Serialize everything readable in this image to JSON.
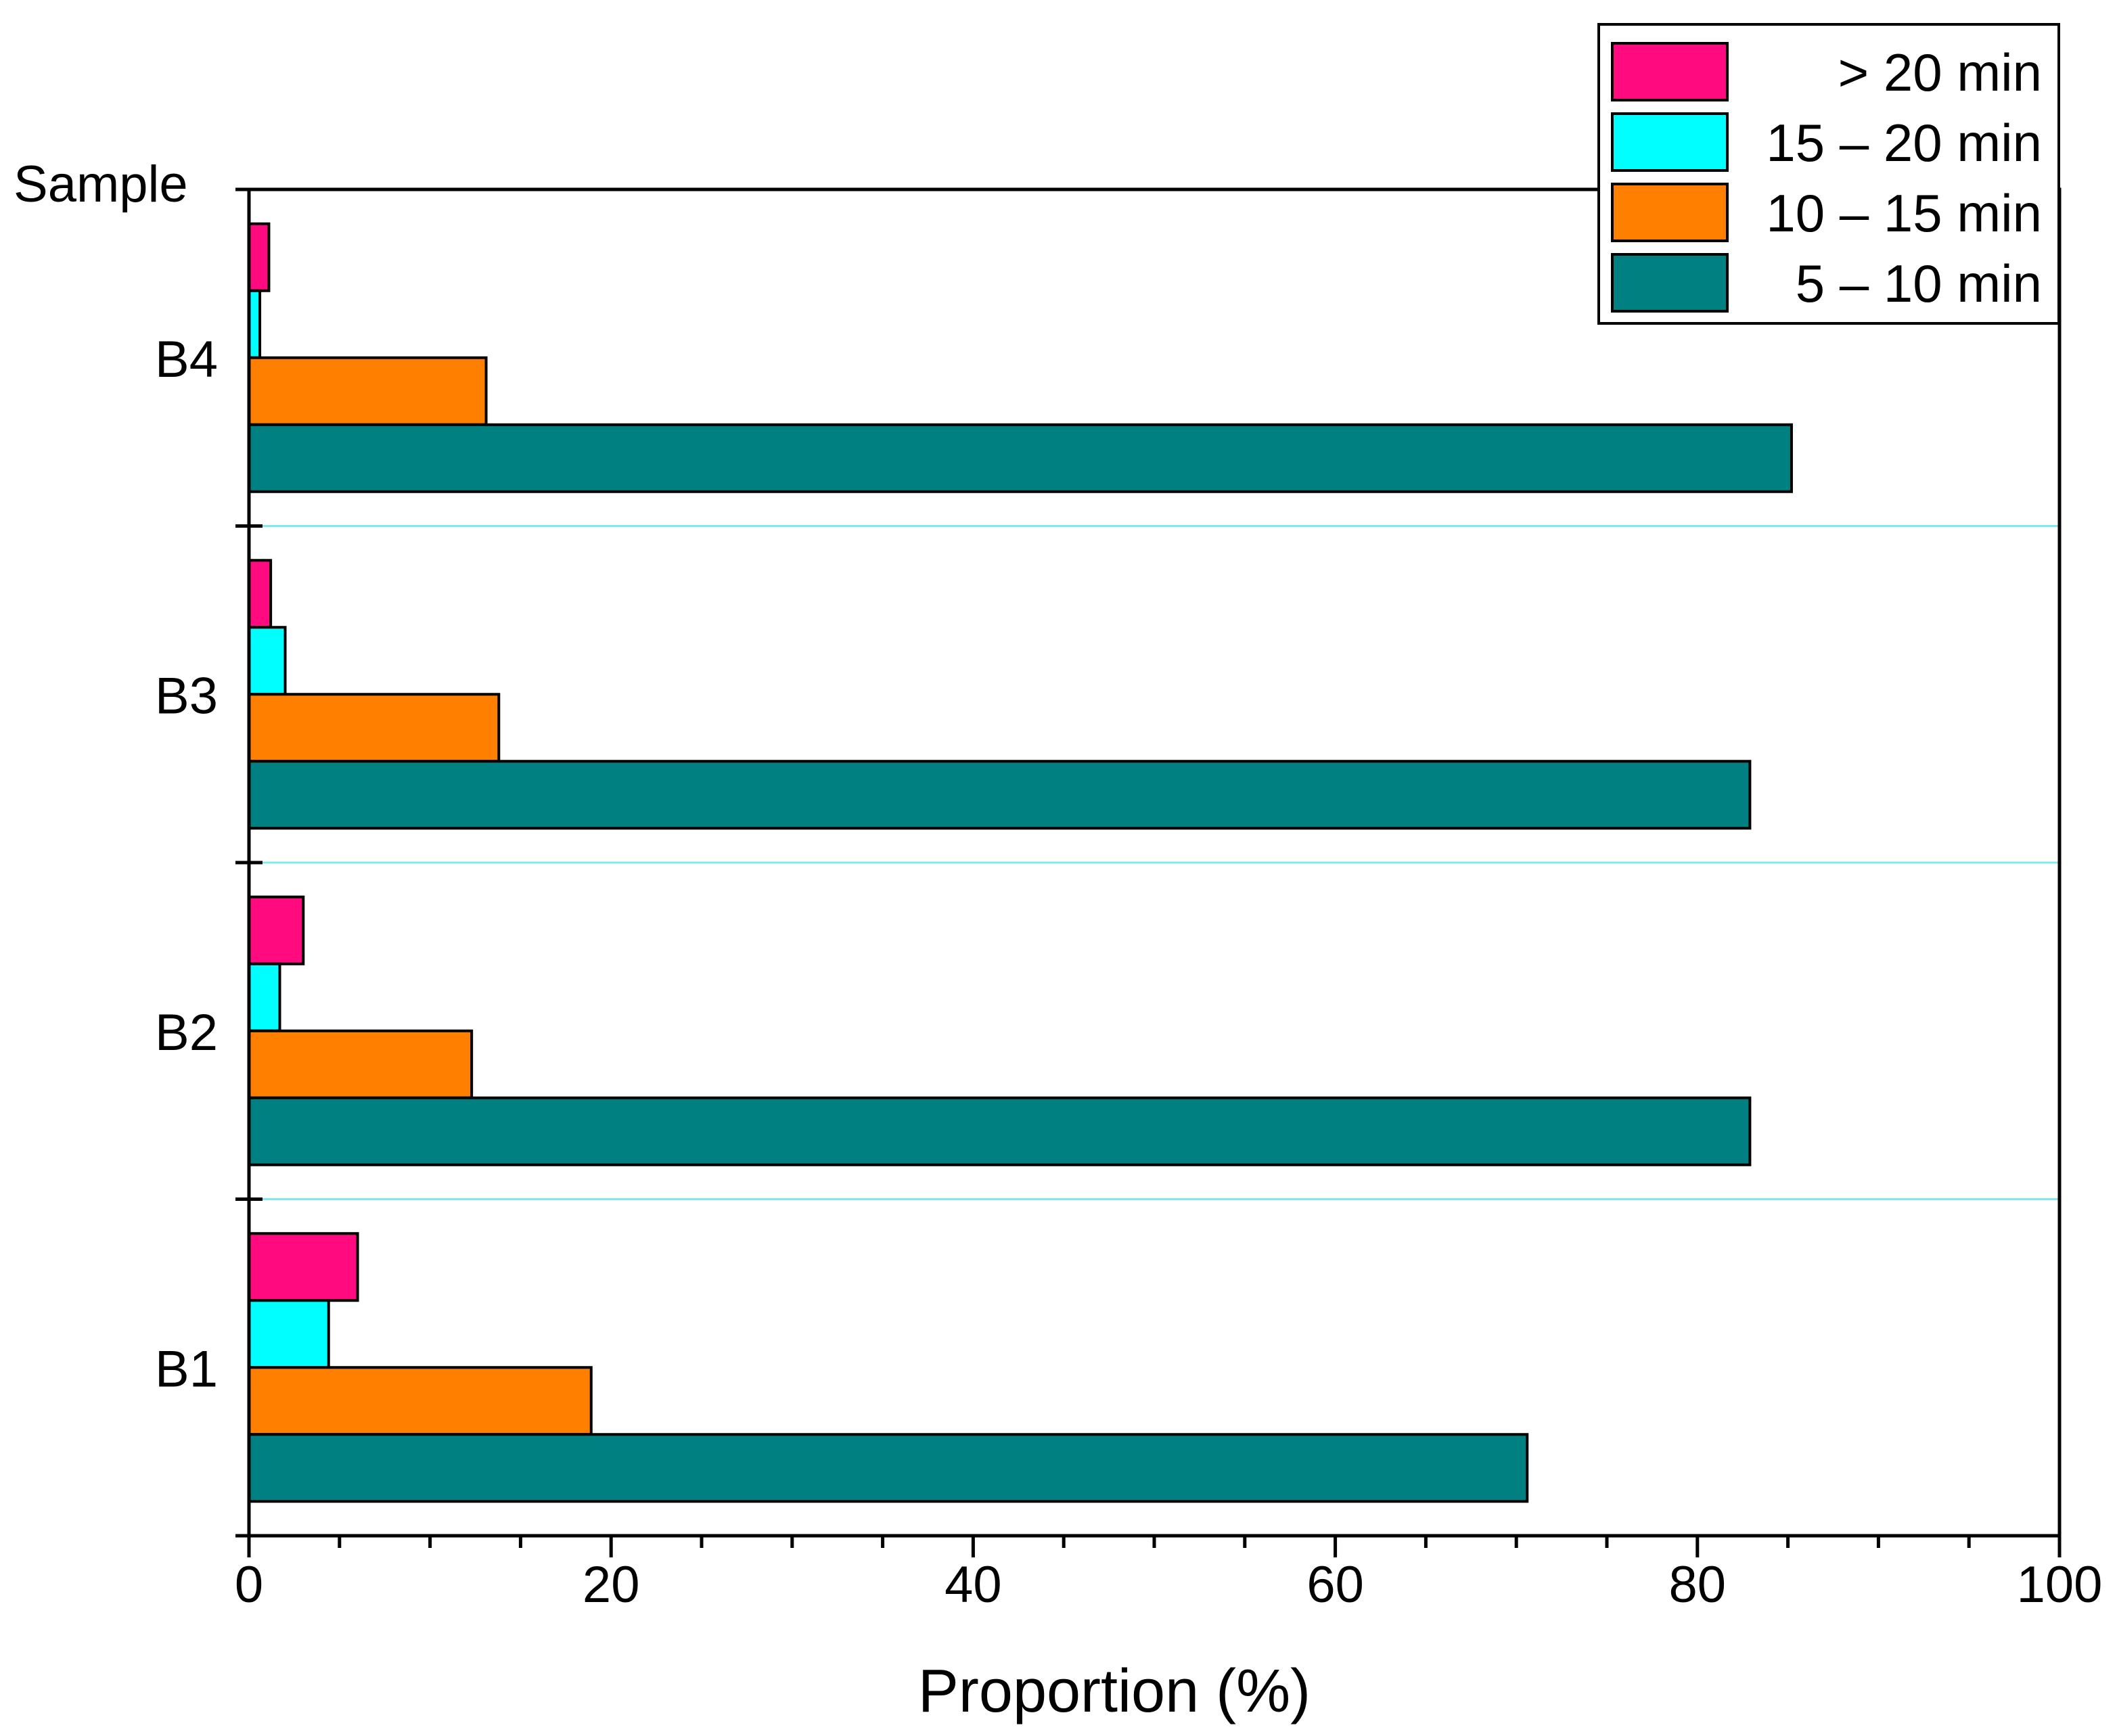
{
  "chart_data": {
    "type": "bar",
    "orientation": "horizontal",
    "categories": [
      "B1",
      "B2",
      "B3",
      "B4"
    ],
    "series": [
      {
        "name": " > 20 min",
        "color": "#ff0a7f",
        "values": [
          6.0,
          3.0,
          1.2,
          1.1
        ]
      },
      {
        "name": "15 – 20 min",
        "color": "#00ffff",
        "values": [
          4.4,
          1.7,
          2.0,
          0.6
        ]
      },
      {
        "name": "10 – 15 min",
        "color": "#ff8000",
        "values": [
          18.9,
          12.3,
          13.8,
          13.1
        ]
      },
      {
        "name": "  5 – 10 min",
        "color": "#008080",
        "values": [
          70.6,
          82.9,
          82.9,
          85.2
        ]
      }
    ],
    "xlabel": "Proportion (%)",
    "ylabel": "Sample",
    "xlim": [
      0,
      100
    ],
    "xticks": [
      0,
      20,
      40,
      60,
      80,
      100
    ],
    "xtick_labels": [
      "0",
      "20",
      "40",
      "60",
      "80",
      "100"
    ],
    "x_minor_step": 5,
    "separator_color": "#7fe8f0",
    "legend_position": "top-right"
  }
}
